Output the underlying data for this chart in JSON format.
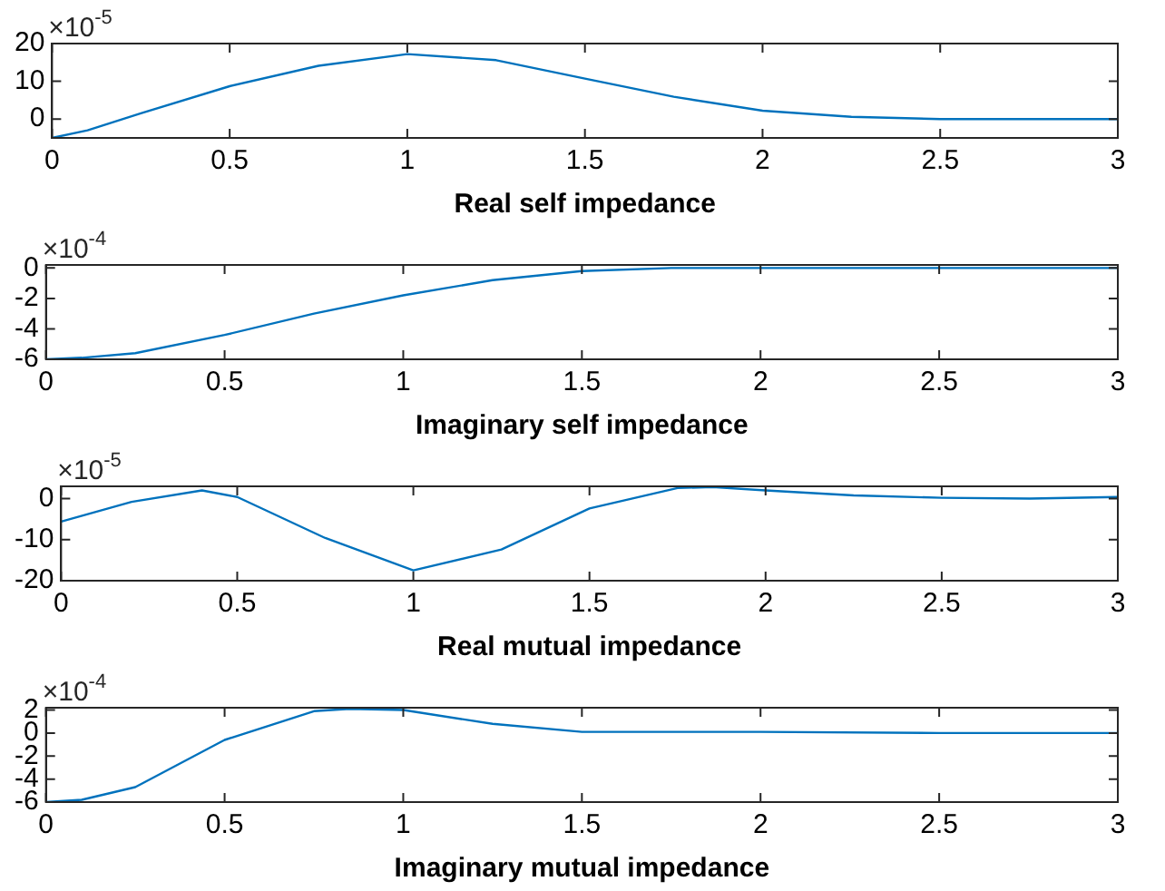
{
  "chart_data": [
    {
      "type": "line",
      "xlabel": "Real self impedance",
      "annotations": [
        "×10$^{-5}$"
      ],
      "xlim": [
        0,
        3
      ],
      "xticks": [
        0,
        0.5,
        1,
        1.5,
        2,
        2.5,
        3
      ],
      "ylim": [
        -5,
        20
      ],
      "yticks": [
        0,
        10,
        20
      ],
      "grid": false,
      "legend": false,
      "marker": "none",
      "series": [
        {
          "color": "#0072bd",
          "x": [
            0,
            0.1,
            0.25,
            0.5,
            0.75,
            1,
            1.25,
            1.5,
            1.75,
            2,
            2.25,
            2.5,
            2.75,
            3
          ],
          "values": [
            -5,
            -3,
            1.5,
            8.7,
            14.1,
            17.2,
            15.6,
            10.7,
            5.9,
            2.2,
            0.6,
            0,
            0,
            0
          ]
        }
      ]
    },
    {
      "type": "line",
      "xlabel": "Imaginary self impedance",
      "annotations": [
        "×10$^{-4}$"
      ],
      "xlim": [
        0,
        3
      ],
      "xticks": [
        0,
        0.5,
        1,
        1.5,
        2,
        2.5,
        3
      ],
      "ylim": [
        -6,
        0.2
      ],
      "yticks": [
        -6,
        -4,
        -2,
        0
      ],
      "grid": false,
      "legend": false,
      "marker": "none",
      "series": [
        {
          "color": "#0072bd",
          "x": [
            0,
            0.1,
            0.25,
            0.5,
            0.75,
            1,
            1.25,
            1.5,
            1.75,
            2,
            2.25,
            2.5,
            2.75,
            3
          ],
          "values": [
            -6,
            -5.9,
            -5.6,
            -4.4,
            -3,
            -1.8,
            -0.8,
            -0.2,
            0,
            0,
            0,
            0,
            0,
            0
          ]
        }
      ]
    },
    {
      "type": "line",
      "xlabel": "Real mutual impedance",
      "annotations": [
        "×10$^{-5}$"
      ],
      "xlim": [
        0,
        3
      ],
      "xticks": [
        0,
        0.5,
        1,
        1.5,
        2,
        2.5,
        3
      ],
      "ylim": [
        -20,
        3
      ],
      "yticks": [
        -20,
        -10,
        0
      ],
      "grid": false,
      "legend": false,
      "marker": "none",
      "series": [
        {
          "color": "#0072bd",
          "x": [
            0,
            0.2,
            0.4,
            0.5,
            0.75,
            1,
            1.25,
            1.5,
            1.75,
            1.85,
            2,
            2.25,
            2.5,
            2.75,
            3
          ],
          "values": [
            -5.6,
            -0.8,
            2,
            0.4,
            -9.6,
            -17.5,
            -12.4,
            -2.4,
            2.6,
            2.8,
            2,
            0.8,
            0.2,
            0,
            0.4
          ]
        }
      ]
    },
    {
      "type": "line",
      "xlabel": "Imaginary mutual impedance",
      "annotations": [
        "×10$^{-4}$"
      ],
      "xlim": [
        0,
        3
      ],
      "xticks": [
        0,
        0.5,
        1,
        1.5,
        2,
        2.5,
        3
      ],
      "ylim": [
        -6,
        2.2
      ],
      "yticks": [
        -6,
        -4,
        -2,
        0,
        2
      ],
      "grid": false,
      "legend": false,
      "marker": "none",
      "series": [
        {
          "color": "#0072bd",
          "x": [
            0,
            0.1,
            0.25,
            0.5,
            0.75,
            0.85,
            1,
            1.25,
            1.5,
            2,
            2.5,
            3
          ],
          "values": [
            -6,
            -5.8,
            -4.7,
            -0.6,
            1.9,
            2.1,
            2,
            0.8,
            0.1,
            0.1,
            0,
            0
          ]
        }
      ]
    }
  ]
}
